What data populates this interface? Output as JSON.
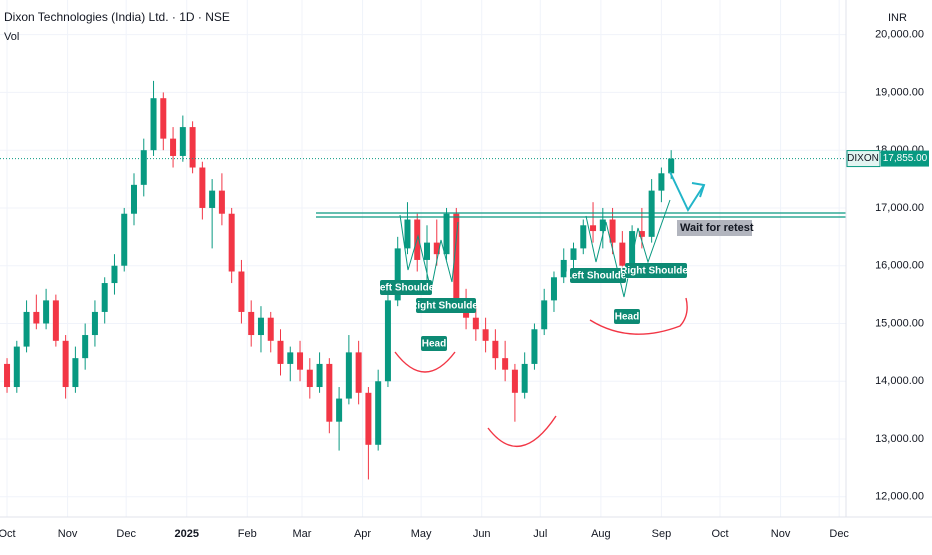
{
  "chart_data": {
    "type": "candlestick",
    "title": "Dixon Technologies (India) Ltd. · 1D · NSE",
    "subtitle": "Vol",
    "currency": "INR",
    "symbol": "DIXON",
    "last_price": 17855,
    "last_price_label": "17,855.00",
    "up_color": "#089981",
    "down_color": "#f23645",
    "grid": true,
    "xlim": [
      -3.6,
      429.5
    ],
    "ylim": [
      11650,
      20600
    ],
    "xticks": [
      {
        "value": 0,
        "label": "Oct"
      },
      {
        "value": 31,
        "label": "Nov"
      },
      {
        "value": 61,
        "label": "Dec"
      },
      {
        "value": 92,
        "label": "2025"
      },
      {
        "value": 123,
        "label": "Feb"
      },
      {
        "value": 151,
        "label": "Mar"
      },
      {
        "value": 182,
        "label": "Apr"
      },
      {
        "value": 212,
        "label": "May"
      },
      {
        "value": 243,
        "label": "Jun"
      },
      {
        "value": 273,
        "label": "Jul"
      },
      {
        "value": 304,
        "label": "Aug"
      },
      {
        "value": 335,
        "label": "Sep"
      },
      {
        "value": 365,
        "label": "Oct"
      },
      {
        "value": 396,
        "label": "Nov"
      },
      {
        "value": 426,
        "label": "Dec"
      }
    ],
    "yticks": [
      {
        "value": 12000,
        "label": "12,000.00"
      },
      {
        "value": 13000,
        "label": "13,000.00"
      },
      {
        "value": 14000,
        "label": "14,000.00"
      },
      {
        "value": 15000,
        "label": "15,000.00"
      },
      {
        "value": 16000,
        "label": "16,000.00"
      },
      {
        "value": 17000,
        "label": "17,000.00"
      },
      {
        "value": 18000,
        "label": "18,000.00"
      },
      {
        "value": 19000,
        "label": "19,000.00"
      },
      {
        "value": 20000,
        "label": "20,000.00"
      }
    ],
    "x": [
      0,
      5,
      10,
      15,
      20,
      25,
      30,
      35,
      40,
      45,
      50,
      55,
      60,
      65,
      70,
      75,
      80,
      85,
      90,
      95,
      100,
      105,
      110,
      115,
      120,
      125,
      130,
      135,
      140,
      145,
      150,
      155,
      160,
      165,
      170,
      175,
      180,
      185,
      190,
      195,
      200,
      205,
      210,
      215,
      220,
      225,
      230,
      235,
      240,
      245,
      250,
      255,
      260,
      265,
      270,
      275,
      280,
      285,
      290,
      295,
      300,
      305,
      310,
      315,
      320,
      325,
      330,
      335,
      340
    ],
    "open": [
      14300,
      13900,
      14600,
      15200,
      15000,
      15400,
      14700,
      13900,
      14400,
      14800,
      15200,
      15700,
      16000,
      16900,
      17400,
      18000,
      18900,
      18200,
      17900,
      18400,
      17700,
      17000,
      17300,
      16900,
      15900,
      15200,
      14800,
      15100,
      14700,
      14300,
      14500,
      14200,
      13900,
      14300,
      13300,
      13700,
      14500,
      13800,
      12900,
      14000,
      15400,
      16300,
      16800,
      16100,
      16400,
      16200,
      16900,
      15400,
      15100,
      14900,
      14700,
      14400,
      14200,
      13800,
      14300,
      14900,
      15400,
      15800,
      16100,
      16300,
      16700,
      16600,
      16800,
      16400,
      16000,
      16600,
      16500,
      17300,
      17600
    ],
    "high": [
      14400,
      14700,
      15400,
      15500,
      15600,
      15500,
      14800,
      14600,
      15000,
      15400,
      15800,
      16200,
      17000,
      17600,
      18200,
      19200,
      19000,
      18400,
      18600,
      18500,
      17800,
      17500,
      17600,
      17000,
      16100,
      15400,
      15300,
      15200,
      14900,
      14600,
      14700,
      14400,
      14500,
      14400,
      13900,
      14800,
      14700,
      13900,
      14200,
      15600,
      16500,
      17100,
      16900,
      16700,
      16800,
      17000,
      17000,
      15600,
      15300,
      15100,
      14900,
      14700,
      14300,
      14500,
      15000,
      15600,
      15900,
      16300,
      16400,
      16800,
      17100,
      17000,
      17000,
      16600,
      16700,
      17000,
      17500,
      17700,
      18000
    ],
    "low": [
      13800,
      13800,
      14500,
      14900,
      14900,
      14600,
      13700,
      13800,
      14200,
      14600,
      15000,
      15500,
      15900,
      16700,
      17200,
      17900,
      18000,
      17700,
      17800,
      17600,
      16800,
      16300,
      16700,
      15700,
      15000,
      14600,
      14500,
      14500,
      14100,
      14000,
      14000,
      13700,
      13800,
      13100,
      12800,
      13600,
      13600,
      12300,
      12800,
      13900,
      15300,
      16200,
      15900,
      15700,
      16000,
      16100,
      15200,
      14900,
      14700,
      14500,
      14200,
      14000,
      13300,
      13700,
      14200,
      14800,
      15200,
      15700,
      15900,
      16200,
      16400,
      16300,
      16200,
      15700,
      15900,
      16300,
      16400,
      17100,
      17500
    ],
    "close": [
      13900,
      14600,
      15200,
      15000,
      15400,
      14700,
      13900,
      14400,
      14800,
      15200,
      15700,
      16000,
      16900,
      17400,
      18000,
      18900,
      18200,
      17900,
      18400,
      17700,
      17000,
      17300,
      16900,
      15900,
      15200,
      14800,
      15100,
      14700,
      14300,
      14500,
      14200,
      13900,
      14300,
      13300,
      13700,
      14500,
      13800,
      12900,
      14000,
      15400,
      16300,
      16800,
      16100,
      16400,
      16200,
      16900,
      15400,
      15100,
      14900,
      14700,
      14400,
      14200,
      13800,
      14300,
      14900,
      15400,
      15800,
      16100,
      16300,
      16700,
      16600,
      16800,
      16400,
      16000,
      16600,
      16500,
      17300,
      17600,
      17855
    ],
    "annotations": [
      "Left Shoulder",
      "Right Shoulder",
      "Head",
      "Left Shoulder",
      "Right Shoulder",
      "Head",
      "Wait for retest"
    ]
  }
}
